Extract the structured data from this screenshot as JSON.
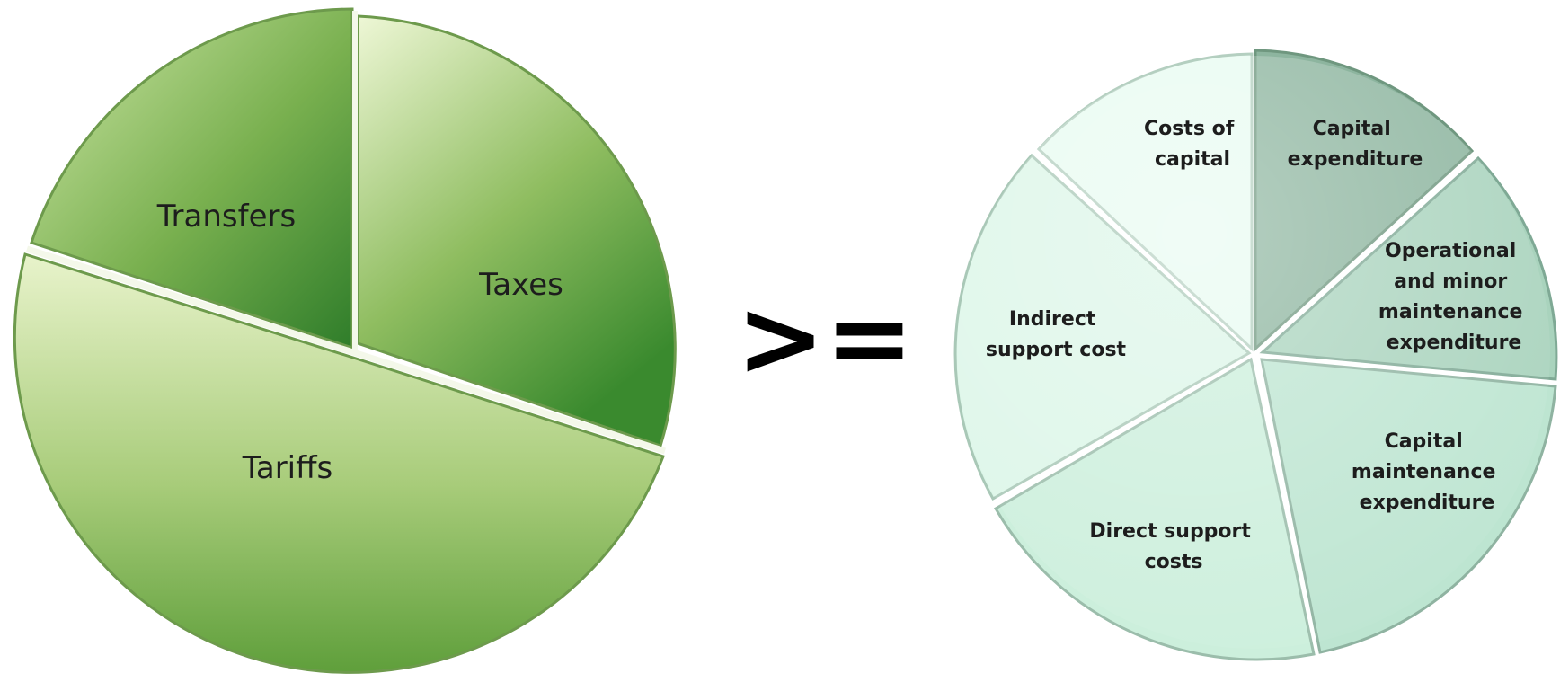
{
  "comparison_operator": ">=",
  "funding_sources": {
    "slices": [
      {
        "label": [
          "Transfers"
        ],
        "share": 0.18
      },
      {
        "label": [
          "Taxes"
        ],
        "share": 0.32
      },
      {
        "label": [
          "Tariffs"
        ],
        "share": 0.5
      }
    ]
  },
  "cost_components": {
    "slices": [
      {
        "label": [
          "Capital",
          "expenditure"
        ],
        "share": 0.1429
      },
      {
        "label": [
          "Operational",
          "and minor",
          "maintenance",
          "expenditure"
        ],
        "share": 0.1429
      },
      {
        "label": [
          "Capital",
          "maintenance",
          "expenditure"
        ],
        "share": 0.1429
      },
      {
        "label": [
          "Direct support",
          "costs"
        ],
        "share": 0.1429
      },
      {
        "label": [
          "Indirect",
          "support cost"
        ],
        "share": 0.1429
      },
      {
        "label": [
          "Costs of",
          "capital"
        ],
        "share": 0.1429
      }
    ]
  },
  "colors": {
    "funding_light": "#e9f3cf",
    "funding_mid": "#8fbd60",
    "funding_dark": "#2f7d2a",
    "cost_capital_expenditure": "#8db59f",
    "cost_operational": "#a9d3bd",
    "cost_capital_maintenance": "#bde5d1",
    "cost_direct_support": "#ccefdc",
    "cost_indirect_support": "#dcf6e8",
    "cost_costs_of_capital": "#e8fbf1"
  }
}
